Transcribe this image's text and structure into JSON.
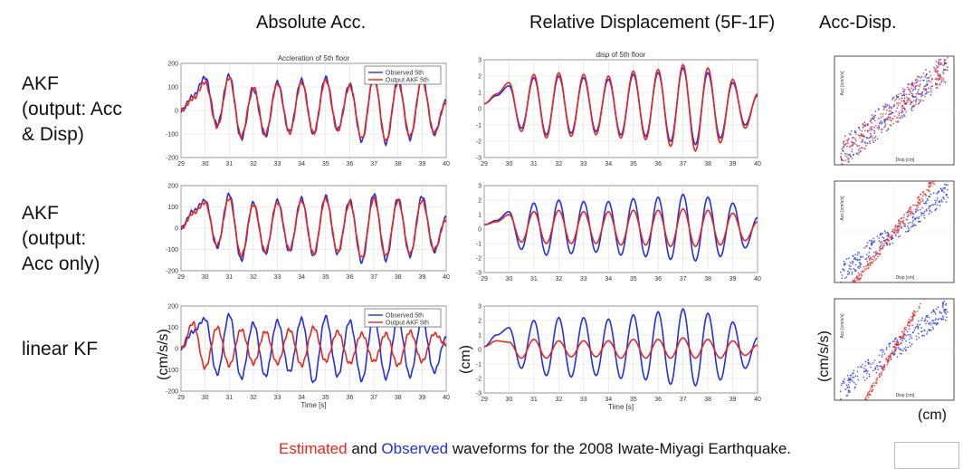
{
  "column_titles": [
    "Absolute Acc.",
    "Relative Displacement (5F-1F)",
    "Acc-Disp."
  ],
  "row_labels": [
    "AKF\n(output: Acc\n& Disp)",
    "AKF\n(output:\nAcc only)",
    "linear KF"
  ],
  "axis_labels": {
    "acc_y": "(cm/s/s)",
    "disp_y": "(cm)",
    "scatter_y": "(cm/s/s)",
    "scatter_x": "(cm)"
  },
  "caption": {
    "estimated": "Estimated",
    "and": " and ",
    "observed": "Observed",
    "rest": " waveforms for the 2008 Iwate-Miyagi Earthquake."
  },
  "colors": {
    "observed": "#2030e0",
    "estimated": "#e8261c"
  },
  "chart_data": [
    {
      "type": "line",
      "panel": "acc-row1",
      "title": "Accleration of 5th floor",
      "xlabel": "",
      "x_ticks": [
        29,
        30,
        31,
        32,
        33,
        34,
        35,
        36,
        37,
        38,
        39,
        40
      ],
      "y_ticks": [
        -200,
        -100,
        0,
        100,
        200
      ],
      "xlim": [
        29,
        40
      ],
      "ylim": [
        -200,
        200
      ],
      "legend": [
        "Observed 5th",
        "Output AKF 5th"
      ],
      "legend_position": "top-right",
      "series": [
        {
          "name": "Observed 5th",
          "x": [
            29,
            29.5,
            30,
            30.5,
            31,
            31.5,
            32,
            32.5,
            33,
            33.5,
            34,
            34.5,
            35,
            35.5,
            36,
            36.5,
            37,
            37.5,
            38,
            38.5,
            39,
            39.5,
            40
          ],
          "values": [
            0,
            60,
            140,
            -60,
            150,
            -120,
            90,
            -110,
            120,
            -90,
            130,
            -100,
            140,
            -80,
            110,
            -130,
            150,
            -140,
            130,
            -120,
            140,
            -100,
            40
          ]
        },
        {
          "name": "Output AKF 5th",
          "x": [
            29,
            29.5,
            30,
            30.5,
            31,
            31.5,
            32,
            32.5,
            33,
            33.5,
            34,
            34.5,
            35,
            35.5,
            36,
            36.5,
            37,
            37.5,
            38,
            38.5,
            39,
            39.5,
            40
          ],
          "values": [
            0,
            50,
            120,
            -70,
            140,
            -110,
            100,
            -100,
            115,
            -95,
            120,
            -95,
            130,
            -85,
            105,
            -120,
            140,
            -130,
            120,
            -110,
            130,
            -95,
            35
          ]
        }
      ]
    },
    {
      "type": "line",
      "panel": "acc-row2",
      "title": "",
      "x_ticks": [
        29,
        30,
        31,
        32,
        33,
        34,
        35,
        36,
        37,
        38,
        39,
        40
      ],
      "y_ticks": [
        -200,
        -100,
        0,
        100,
        200
      ],
      "xlim": [
        29,
        40
      ],
      "ylim": [
        -200,
        200
      ],
      "series": [
        {
          "name": "",
          "x": [
            29,
            29.5,
            30,
            30.5,
            31,
            31.5,
            32,
            32.5,
            33,
            33.5,
            34,
            34.5,
            35,
            35.5,
            36,
            36.5,
            37,
            37.5,
            38,
            38.5,
            39,
            39.5,
            40
          ],
          "values": [
            0,
            80,
            130,
            -90,
            160,
            -150,
            120,
            -120,
            130,
            -110,
            140,
            -130,
            150,
            -120,
            130,
            -160,
            160,
            -150,
            140,
            -130,
            150,
            -110,
            50
          ]
        },
        {
          "name": "",
          "x": [
            29,
            29.5,
            30,
            30.5,
            31,
            31.5,
            32,
            32.5,
            33,
            33.5,
            34,
            34.5,
            35,
            35.5,
            36,
            36.5,
            37,
            37.5,
            38,
            38.5,
            39,
            39.5,
            40
          ],
          "values": [
            0,
            70,
            120,
            -80,
            140,
            -130,
            110,
            -110,
            120,
            -100,
            130,
            -120,
            140,
            -110,
            120,
            -140,
            140,
            -130,
            130,
            -120,
            130,
            -100,
            40
          ]
        }
      ]
    },
    {
      "type": "line",
      "panel": "acc-row3",
      "title": "",
      "xlabel": "Time [s]",
      "x_ticks": [
        29,
        30,
        31,
        32,
        33,
        34,
        35,
        36,
        37,
        38,
        39,
        40
      ],
      "y_ticks": [
        -200,
        -100,
        0,
        100,
        200
      ],
      "xlim": [
        29,
        40
      ],
      "ylim": [
        -200,
        200
      ],
      "legend": [
        "Observed 5th",
        "Output AKF 5th"
      ],
      "legend_position": "top-right",
      "series": [
        {
          "name": "Observed 5th",
          "x": [
            29,
            29.5,
            30,
            30.5,
            31,
            31.5,
            32,
            32.5,
            33,
            33.5,
            34,
            34.5,
            35,
            35.5,
            36,
            36.5,
            37,
            37.5,
            38,
            38.5,
            39,
            39.5,
            40
          ],
          "values": [
            0,
            80,
            140,
            -120,
            160,
            -140,
            120,
            -130,
            130,
            -110,
            140,
            -160,
            150,
            -130,
            130,
            -150,
            150,
            -140,
            140,
            -130,
            140,
            -110,
            50
          ]
        },
        {
          "name": "Output AKF 5th",
          "x": [
            29,
            29.5,
            30,
            30.5,
            31,
            31.5,
            32,
            32.5,
            33,
            33.5,
            34,
            34.5,
            35,
            35.5,
            36,
            36.5,
            37,
            37.5,
            38,
            38.5,
            39,
            39.5,
            40
          ],
          "values": [
            0,
            120,
            -90,
            100,
            -80,
            90,
            -70,
            80,
            -70,
            90,
            -80,
            100,
            -60,
            80,
            -70,
            70,
            -60,
            70,
            -80,
            80,
            -60,
            70,
            20
          ]
        }
      ]
    },
    {
      "type": "line",
      "panel": "disp-row1",
      "title": "disp of 5th floor",
      "x_ticks": [
        29,
        30,
        31,
        32,
        33,
        34,
        35,
        36,
        37,
        38,
        39,
        40
      ],
      "y_ticks": [
        -3,
        -2,
        -1,
        0,
        1,
        2,
        3
      ],
      "xlim": [
        29,
        40
      ],
      "ylim": [
        -3,
        3
      ],
      "series": [
        {
          "name": "",
          "x": [
            29,
            29.5,
            30,
            30.5,
            31,
            31.5,
            32,
            32.5,
            33,
            33.5,
            34,
            34.5,
            35,
            35.5,
            36,
            36.5,
            37,
            37.5,
            38,
            38.5,
            39,
            39.5,
            40
          ],
          "values": [
            0.3,
            0.8,
            1.4,
            -1.2,
            1.9,
            -1.6,
            2.0,
            -1.5,
            1.9,
            -1.4,
            1.8,
            -1.6,
            2.1,
            -1.7,
            2.2,
            -2.0,
            2.5,
            -2.2,
            2.2,
            -1.8,
            1.6,
            -1.0,
            0.8
          ]
        },
        {
          "name": "",
          "x": [
            29,
            29.5,
            30,
            30.5,
            31,
            31.5,
            32,
            32.5,
            33,
            33.5,
            34,
            34.5,
            35,
            35.5,
            36,
            36.5,
            37,
            37.5,
            38,
            38.5,
            39,
            39.5,
            40
          ],
          "values": [
            0.3,
            0.9,
            1.6,
            -1.4,
            2.1,
            -1.8,
            2.2,
            -1.7,
            2.1,
            -1.6,
            2.0,
            -1.8,
            2.3,
            -1.9,
            2.4,
            -2.3,
            2.7,
            -2.6,
            2.5,
            -2.1,
            1.8,
            -1.2,
            0.9
          ]
        }
      ]
    },
    {
      "type": "line",
      "panel": "disp-row2",
      "title": "",
      "x_ticks": [
        29,
        30,
        31,
        32,
        33,
        34,
        35,
        36,
        37,
        38,
        39,
        40
      ],
      "y_ticks": [
        -3,
        -2,
        -1,
        0,
        1,
        2,
        3
      ],
      "xlim": [
        29,
        40
      ],
      "ylim": [
        -3,
        3
      ],
      "series": [
        {
          "name": "",
          "x": [
            29,
            29.5,
            30,
            30.5,
            31,
            31.5,
            32,
            32.5,
            33,
            33.5,
            34,
            34.5,
            35,
            35.5,
            36,
            36.5,
            37,
            37.5,
            38,
            38.5,
            39,
            39.5,
            40
          ],
          "values": [
            0.3,
            0.6,
            1.2,
            -1.4,
            1.8,
            -1.8,
            2.0,
            -1.7,
            1.9,
            -1.6,
            1.9,
            -1.8,
            2.1,
            -1.9,
            2.2,
            -2.1,
            2.4,
            -2.2,
            2.2,
            -1.9,
            1.8,
            -1.3,
            0.8
          ]
        },
        {
          "name": "",
          "x": [
            29,
            29.5,
            30,
            30.5,
            31,
            31.5,
            32,
            32.5,
            33,
            33.5,
            34,
            34.5,
            35,
            35.5,
            36,
            36.5,
            37,
            37.5,
            38,
            38.5,
            39,
            39.5,
            40
          ],
          "values": [
            0.3,
            0.5,
            1.0,
            -0.9,
            1.2,
            -1.0,
            1.3,
            -1.0,
            1.2,
            -1.0,
            1.2,
            -1.1,
            1.3,
            -1.1,
            1.3,
            -1.2,
            1.4,
            -1.2,
            1.3,
            -1.1,
            1.1,
            -0.8,
            0.5
          ]
        }
      ]
    },
    {
      "type": "line",
      "panel": "disp-row3",
      "title": "",
      "xlabel": "Time [s]",
      "x_ticks": [
        29,
        30,
        31,
        32,
        33,
        34,
        35,
        36,
        37,
        38,
        39,
        40
      ],
      "y_ticks": [
        -3,
        -2,
        -1,
        0,
        1,
        2,
        3
      ],
      "xlim": [
        29,
        40
      ],
      "ylim": [
        -3,
        3
      ],
      "series": [
        {
          "name": "",
          "x": [
            29,
            29.5,
            30,
            30.5,
            31,
            31.5,
            32,
            32.5,
            33,
            33.5,
            34,
            34.5,
            35,
            35.5,
            36,
            36.5,
            37,
            37.5,
            38,
            38.5,
            39,
            39.5,
            40
          ],
          "values": [
            0.2,
            1.0,
            1.5,
            -1.3,
            2.0,
            -1.8,
            2.2,
            -1.9,
            2.2,
            -1.8,
            2.1,
            -2.0,
            2.4,
            -2.1,
            2.6,
            -2.4,
            2.8,
            -2.5,
            2.5,
            -2.1,
            1.9,
            -1.3,
            0.8
          ]
        },
        {
          "name": "",
          "x": [
            29,
            29.5,
            30,
            30.5,
            31,
            31.5,
            32,
            32.5,
            33,
            33.5,
            34,
            34.5,
            35,
            35.5,
            36,
            36.5,
            37,
            37.5,
            38,
            38.5,
            39,
            39.5,
            40
          ],
          "values": [
            0.2,
            0.6,
            0.5,
            -0.6,
            0.7,
            -0.6,
            0.6,
            -0.5,
            0.6,
            -0.5,
            0.6,
            -0.6,
            0.7,
            -0.6,
            0.7,
            -0.6,
            0.8,
            -0.6,
            0.7,
            -0.6,
            0.6,
            -0.4,
            0.3
          ]
        }
      ]
    },
    {
      "type": "scatter",
      "panel": "scatter-row1",
      "xlabel": "Disp [cm]",
      "ylabel": "Acc [cm/s/s]",
      "xlim": [
        -3,
        3
      ],
      "ylim": [
        -200,
        200
      ],
      "series": [
        {
          "name": "",
          "slope": 60,
          "spread": 55
        },
        {
          "name": "",
          "slope": 62,
          "spread": 50
        }
      ]
    },
    {
      "type": "scatter",
      "panel": "scatter-row2",
      "xlabel": "Disp [cm]",
      "ylabel": "Acc [cm/s/s]",
      "xlim": [
        -3,
        3
      ],
      "ylim": [
        -200,
        200
      ],
      "series": [
        {
          "name": "",
          "slope": 60,
          "spread": 40
        },
        {
          "name": "",
          "slope": 100,
          "spread": 18
        }
      ]
    },
    {
      "type": "scatter",
      "panel": "scatter-row3",
      "xlabel": "Disp [cm]",
      "ylabel": "Acc [cm/s/s]",
      "xlim": [
        -3,
        3
      ],
      "ylim": [
        -200,
        200
      ],
      "series": [
        {
          "name": "",
          "slope": 60,
          "spread": 40
        },
        {
          "name": "",
          "slope": 140,
          "spread": 14
        }
      ]
    }
  ]
}
